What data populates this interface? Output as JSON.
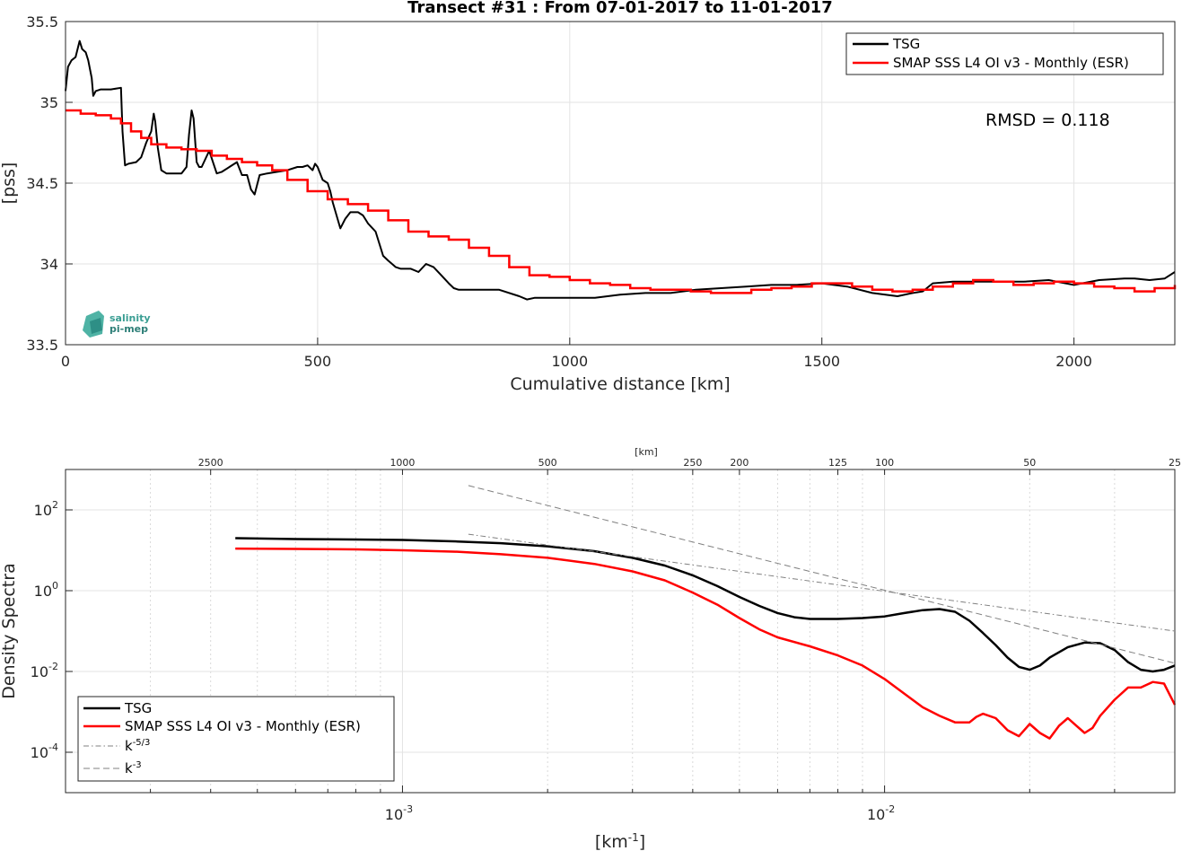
{
  "figure": {
    "logo_text": [
      "salinity",
      "pi-mep"
    ]
  },
  "chart_data": [
    {
      "type": "line",
      "title": "Transect #31 : From 07-01-2017 to 11-01-2017",
      "xlabel": "Cumulative distance [km]",
      "ylabel": "[pss]",
      "xlim": [
        0,
        2200
      ],
      "ylim": [
        33.5,
        35.5
      ],
      "xticks": [
        0,
        500,
        1000,
        1500,
        2000
      ],
      "yticks": [
        33.5,
        34,
        34.5,
        35,
        35.5
      ],
      "ytick_labels": [
        "33.5",
        "34",
        "34.5",
        "35",
        "35.5"
      ],
      "grid": true,
      "legend_position": "top-right",
      "annotation": "RMSD = 0.118",
      "series": [
        {
          "name": "TSG",
          "color": "#000000",
          "x": [
            0,
            5,
            12,
            20,
            28,
            33,
            40,
            45,
            52,
            55,
            60,
            70,
            75,
            90,
            110,
            113,
            118,
            125,
            140,
            150,
            160,
            170,
            175,
            178,
            183,
            190,
            200,
            215,
            230,
            240,
            245,
            250,
            254,
            260,
            265,
            270,
            285,
            300,
            310,
            325,
            340,
            350,
            360,
            368,
            375,
            385,
            400,
            420,
            440,
            460,
            470,
            480,
            490,
            495,
            500,
            510,
            520,
            525,
            530,
            545,
            555,
            565,
            580,
            590,
            600,
            615,
            630,
            640,
            655,
            665,
            675,
            685,
            700,
            715,
            730,
            745,
            760,
            770,
            780,
            790,
            800,
            820,
            860,
            900,
            915,
            930,
            960,
            1000,
            1030,
            1050,
            1100,
            1150,
            1200,
            1250,
            1300,
            1350,
            1400,
            1450,
            1500,
            1550,
            1600,
            1650,
            1680,
            1700,
            1720,
            1760,
            1800,
            1850,
            1900,
            1950,
            2000,
            2050,
            2100,
            2120,
            2150,
            2180,
            2200
          ],
          "y": [
            35.07,
            35.22,
            35.26,
            35.28,
            35.38,
            35.33,
            35.31,
            35.26,
            35.15,
            35.04,
            35.07,
            35.08,
            35.08,
            35.08,
            35.09,
            34.82,
            34.61,
            34.62,
            34.63,
            34.66,
            34.75,
            34.82,
            34.93,
            34.88,
            34.72,
            34.58,
            34.56,
            34.56,
            34.56,
            34.6,
            34.8,
            34.95,
            34.9,
            34.63,
            34.6,
            34.6,
            34.7,
            34.56,
            34.57,
            34.6,
            34.63,
            34.55,
            34.55,
            34.46,
            34.43,
            34.55,
            34.56,
            34.57,
            34.58,
            34.6,
            34.6,
            34.61,
            34.58,
            34.62,
            34.6,
            34.52,
            34.5,
            34.45,
            34.38,
            34.22,
            34.28,
            34.32,
            34.32,
            34.3,
            34.25,
            34.2,
            34.05,
            34.02,
            33.98,
            33.97,
            33.97,
            33.97,
            33.95,
            34.0,
            33.98,
            33.93,
            33.88,
            33.85,
            33.84,
            33.84,
            33.84,
            33.84,
            33.84,
            33.8,
            33.78,
            33.79,
            33.79,
            33.79,
            33.79,
            33.79,
            33.81,
            33.82,
            33.82,
            33.84,
            33.85,
            33.86,
            33.87,
            33.87,
            33.88,
            33.86,
            33.82,
            33.8,
            33.82,
            33.83,
            33.88,
            33.89,
            33.89,
            33.89,
            33.89,
            33.9,
            33.87,
            33.9,
            33.91,
            33.91,
            33.9,
            33.91,
            33.95
          ]
        },
        {
          "name": "SMAP SSS L4 OI v3 - Monthly (ESR)",
          "color": "#ff0000",
          "x": [
            0,
            30,
            60,
            90,
            110,
            130,
            150,
            170,
            200,
            230,
            260,
            290,
            320,
            350,
            380,
            410,
            440,
            480,
            520,
            560,
            600,
            640,
            680,
            720,
            760,
            800,
            840,
            880,
            920,
            960,
            1000,
            1040,
            1080,
            1120,
            1160,
            1200,
            1240,
            1280,
            1320,
            1360,
            1400,
            1440,
            1480,
            1520,
            1560,
            1600,
            1640,
            1680,
            1720,
            1760,
            1800,
            1840,
            1880,
            1920,
            1960,
            2000,
            2040,
            2080,
            2120,
            2160,
            2200
          ],
          "y": [
            34.95,
            34.93,
            34.92,
            34.9,
            34.87,
            34.82,
            34.78,
            34.74,
            34.72,
            34.71,
            34.7,
            34.67,
            34.65,
            34.63,
            34.61,
            34.58,
            34.52,
            34.45,
            34.4,
            34.37,
            34.33,
            34.27,
            34.2,
            34.17,
            34.15,
            34.1,
            34.05,
            33.98,
            33.93,
            33.92,
            33.9,
            33.88,
            33.87,
            33.85,
            33.84,
            33.84,
            33.83,
            33.82,
            33.82,
            33.84,
            33.85,
            33.86,
            33.88,
            33.88,
            33.86,
            33.84,
            33.83,
            33.84,
            33.86,
            33.88,
            33.9,
            33.89,
            33.87,
            33.88,
            33.89,
            33.88,
            33.86,
            33.85,
            33.83,
            33.85,
            33.87
          ]
        }
      ]
    },
    {
      "type": "line",
      "xscale": "log",
      "yscale": "log",
      "xlabel": "[km",
      "xlabel_sup": "-1",
      "xlabel_close": "]",
      "ylabel": "Density Spectra",
      "top_axis_label": "[km]",
      "top_ticks": [
        "2500",
        "1000",
        "500",
        "250",
        "200",
        "125",
        "100",
        "50",
        "25"
      ],
      "top_tick_values": [
        2500,
        1000,
        500,
        250,
        200,
        125,
        100,
        50,
        25
      ],
      "xlim": [
        0.0002,
        0.04
      ],
      "ylim": [
        1e-05,
        1000
      ],
      "xtick_base": "10",
      "xtick_exps": [
        "-3",
        "-2"
      ],
      "ytick_base": "10",
      "ytick_exps": [
        "2",
        "0",
        "-2",
        "-4"
      ],
      "grid": true,
      "legend_position": "bottom-left",
      "series": [
        {
          "name": "TSG",
          "color": "#000000",
          "style": "solid",
          "x": [
            0.00045,
            0.0006,
            0.0008,
            0.001,
            0.0013,
            0.0016,
            0.002,
            0.0025,
            0.003,
            0.0035,
            0.004,
            0.0045,
            0.005,
            0.0055,
            0.006,
            0.0065,
            0.007,
            0.008,
            0.009,
            0.01,
            0.011,
            0.012,
            0.013,
            0.014,
            0.015,
            0.016,
            0.017,
            0.018,
            0.019,
            0.02,
            0.021,
            0.022,
            0.024,
            0.026,
            0.028,
            0.03,
            0.032,
            0.034,
            0.036,
            0.038,
            0.04
          ],
          "y": [
            20,
            19,
            18.5,
            18,
            16.5,
            15,
            12.5,
            9.5,
            6.5,
            4.2,
            2.4,
            1.3,
            0.7,
            0.42,
            0.28,
            0.22,
            0.2,
            0.2,
            0.21,
            0.23,
            0.28,
            0.33,
            0.35,
            0.3,
            0.18,
            0.09,
            0.045,
            0.022,
            0.013,
            0.011,
            0.014,
            0.022,
            0.04,
            0.052,
            0.05,
            0.034,
            0.017,
            0.011,
            0.01,
            0.011,
            0.014
          ]
        },
        {
          "name": "SMAP SSS L4 OI v3 - Monthly (ESR)",
          "color": "#ff0000",
          "style": "solid",
          "x": [
            0.00045,
            0.0006,
            0.0008,
            0.001,
            0.0013,
            0.0016,
            0.002,
            0.0025,
            0.003,
            0.0035,
            0.004,
            0.0045,
            0.005,
            0.0055,
            0.006,
            0.007,
            0.008,
            0.009,
            0.01,
            0.011,
            0.012,
            0.013,
            0.014,
            0.015,
            0.0155,
            0.016,
            0.017,
            0.018,
            0.019,
            0.02,
            0.021,
            0.022,
            0.023,
            0.024,
            0.025,
            0.026,
            0.027,
            0.028,
            0.03,
            0.032,
            0.034,
            0.036,
            0.038,
            0.04
          ],
          "y": [
            11,
            10.8,
            10.5,
            10,
            9.2,
            8,
            6.5,
            4.6,
            3,
            1.8,
            0.9,
            0.45,
            0.21,
            0.11,
            0.07,
            0.042,
            0.025,
            0.014,
            0.0065,
            0.0028,
            0.0013,
            0.0008,
            0.00055,
            0.00055,
            0.00075,
            0.0009,
            0.0007,
            0.00035,
            0.00025,
            0.0005,
            0.0003,
            0.00022,
            0.00045,
            0.0007,
            0.00045,
            0.0003,
            0.0004,
            0.0008,
            0.002,
            0.004,
            0.004,
            0.0055,
            0.005,
            0.0015
          ]
        },
        {
          "name": "k",
          "name_sup": "-5/3",
          "color": "#808080",
          "style": "dashdot",
          "x": [
            0.00137,
            0.04
          ],
          "y": [
            25,
            0.1
          ]
        },
        {
          "name": "k",
          "name_sup": "-3",
          "color": "#808080",
          "style": "dashed",
          "x": [
            0.00137,
            0.04
          ],
          "y": [
            400,
            0.016
          ]
        }
      ]
    }
  ]
}
